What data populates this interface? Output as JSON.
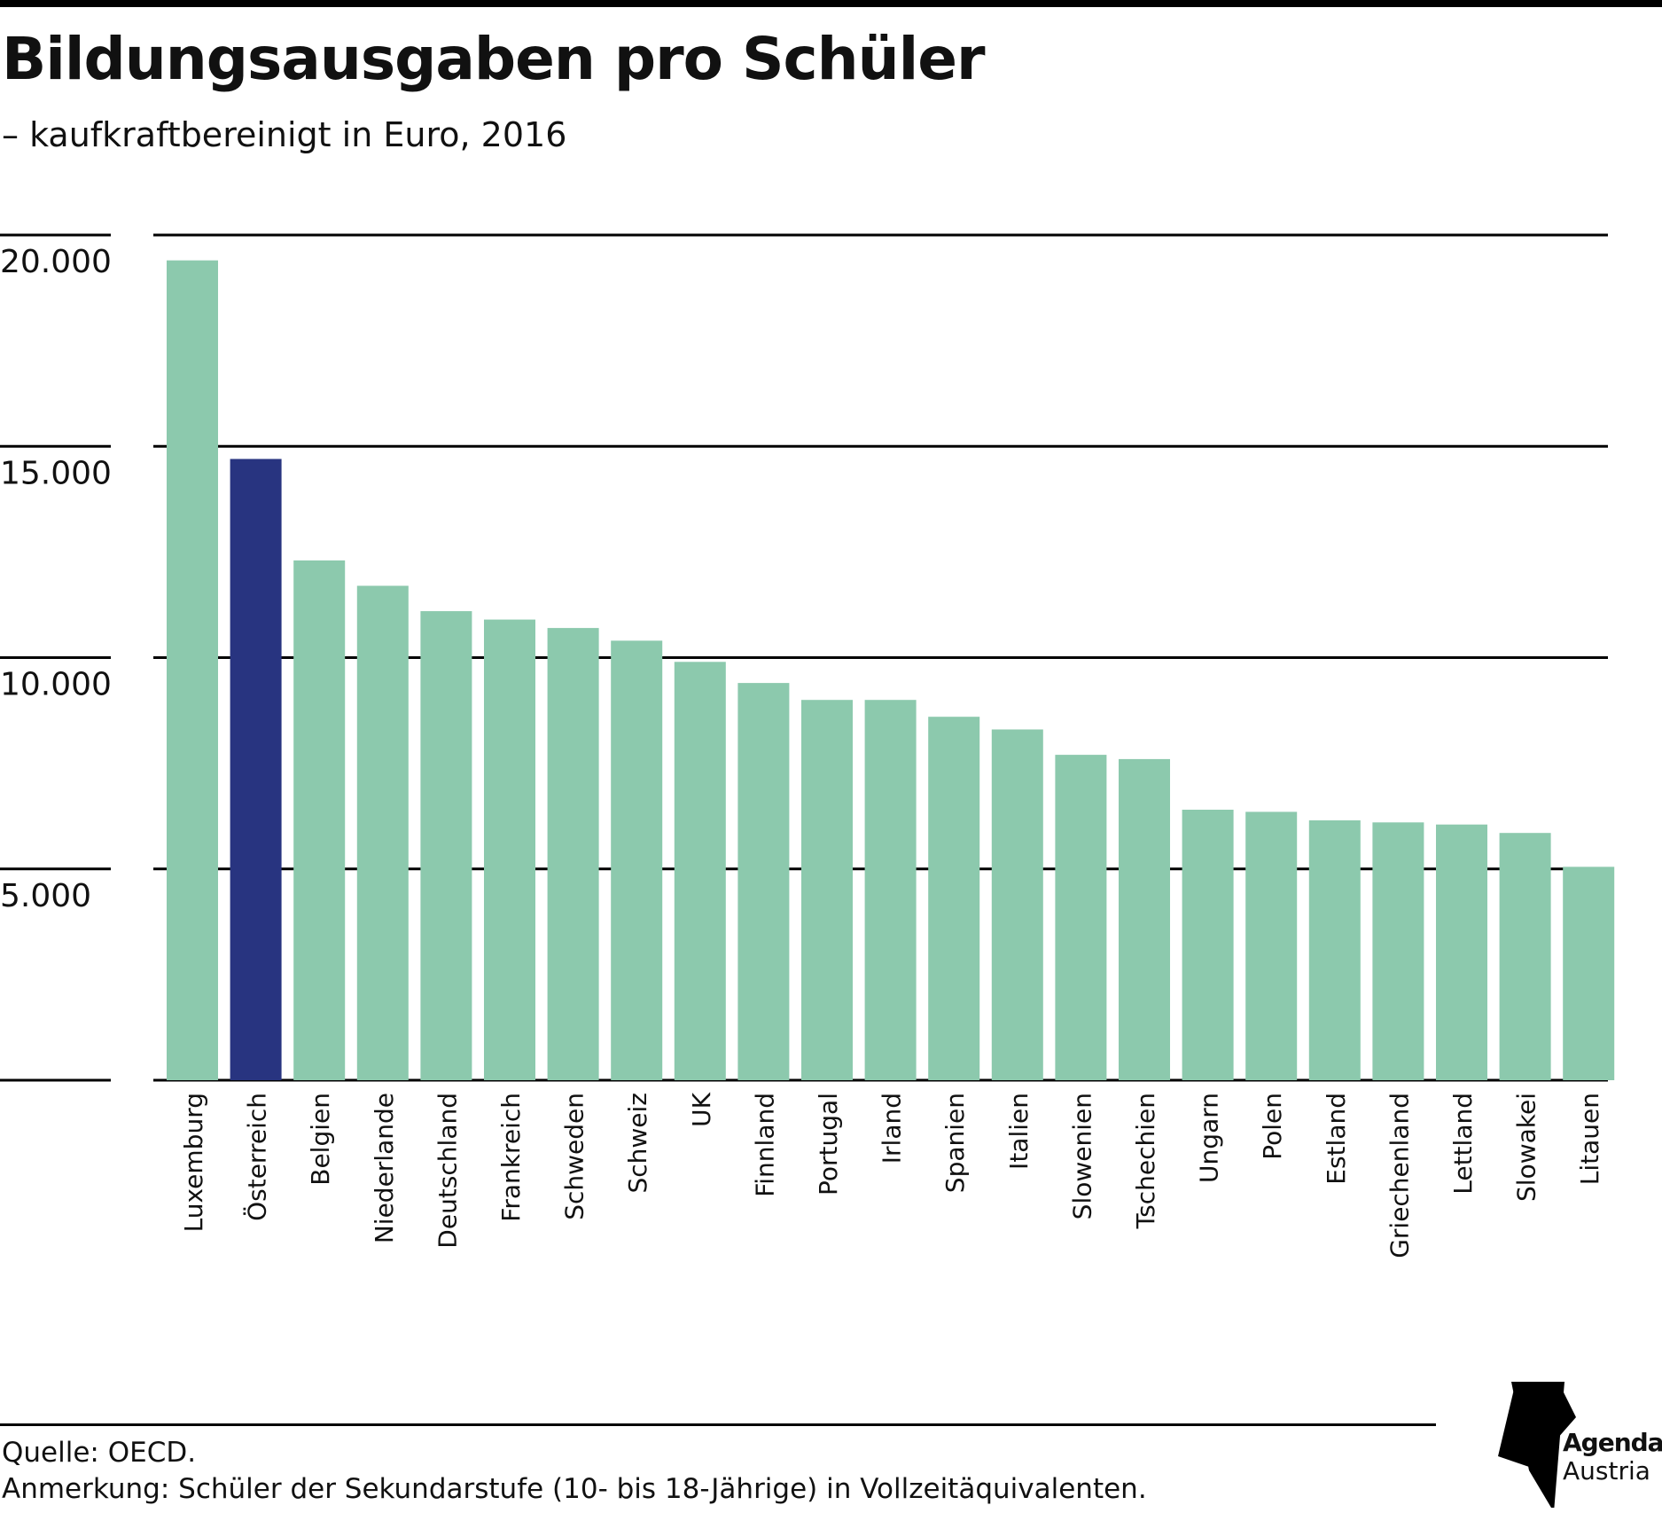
{
  "title": "Bildungsausgaben pro Schüler",
  "subtitle": "– kaufkraftbereinigt in Euro, 2016",
  "footer": {
    "source": "Quelle: OECD.",
    "note": "Anmerkung: Schüler der Sekundarstufe (10- bis 18-Jährige) in Vollzeitäquivalenten."
  },
  "logo": {
    "line1": "Agenda",
    "line2": "Austria"
  },
  "colors": {
    "bar": "#8cc9ad",
    "highlight": "#283480",
    "grid": "#000000"
  },
  "chart_data": {
    "type": "bar",
    "title": "Bildungsausgaben pro Schüler",
    "subtitle": "– kaufkraftbereinigt in Euro, 2016",
    "xlabel": "",
    "ylabel": "",
    "ylim": [
      0,
      20000
    ],
    "yticks": [
      5000,
      10000,
      15000,
      20000
    ],
    "ytick_labels": [
      "5.000",
      "10.000",
      "15.000",
      "20.000"
    ],
    "grid": true,
    "highlight": "Österreich",
    "categories": [
      "Luxemburg",
      "Österreich",
      "Belgien",
      "Niederlande",
      "Deutschland",
      "Frankreich",
      "Schweden",
      "Schweiz",
      "UK",
      "Finnland",
      "Portugal",
      "Irland",
      "Spanien",
      "Italien",
      "Slowenien",
      "Tschechien",
      "Ungarn",
      "Polen",
      "Estland",
      "Griechenland",
      "Lettland",
      "Slowakei",
      "Litauen"
    ],
    "values": [
      19400,
      14700,
      12300,
      11700,
      11100,
      10900,
      10700,
      10400,
      9900,
      9400,
      9000,
      9000,
      8600,
      8300,
      7700,
      7600,
      6400,
      6350,
      6150,
      6100,
      6050,
      5850,
      5050
    ]
  }
}
